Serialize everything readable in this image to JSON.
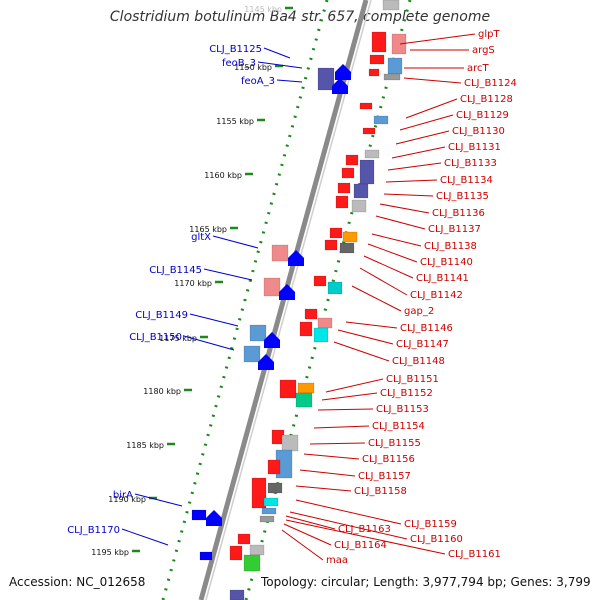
{
  "title": "Clostridium botulinum Ba4 str. 657, complete genome",
  "footer": {
    "accession": "Accession: NC_012658",
    "summary": "Topology: circular; Length: 3,977,794 bp; Genes: 3,799"
  },
  "colors": {
    "background": "#ffffff",
    "backbone": "#888888",
    "ruler_dots": "#1a8a1a",
    "left_labels": "#0000cc",
    "right_labels": "#cc0000"
  },
  "kbp_ticks": [
    "1145 kbp",
    "1150 kbp",
    "1155 kbp",
    "1160 kbp",
    "1165 kbp",
    "1170 kbp",
    "1175 kbp",
    "1180 kbp",
    "1185 kbp",
    "1190 kbp",
    "1195 kbp"
  ],
  "left_labels": [
    "CLJ_B1125",
    "feoB_3",
    "feoA_3",
    "gltX",
    "CLJ_B1145",
    "CLJ_B1149",
    "CLJ_B1150",
    "birA",
    "CLJ_B1170"
  ],
  "right_labels": [
    "glpT",
    "argS",
    "arcT",
    "CLJ_B1124",
    "CLJ_B1128",
    "CLJ_B1129",
    "CLJ_B1130",
    "CLJ_B1131",
    "CLJ_B1133",
    "CLJ_B1134",
    "CLJ_B1135",
    "CLJ_B1136",
    "CLJ_B1137",
    "CLJ_B1138",
    "CLJ_B1140",
    "CLJ_B1141",
    "CLJ_B1142",
    "gap_2",
    "CLJ_B1146",
    "CLJ_B1147",
    "CLJ_B1148",
    "CLJ_B1151",
    "CLJ_B1152",
    "CLJ_B1153",
    "CLJ_B1154",
    "CLJ_B1155",
    "CLJ_B1156",
    "CLJ_B1157",
    "CLJ_B1158",
    "CLJ_B1159",
    "CLJ_B1160",
    "CLJ_B1161",
    "CLJ_B1163",
    "CLJ_B1164",
    "maa"
  ]
}
